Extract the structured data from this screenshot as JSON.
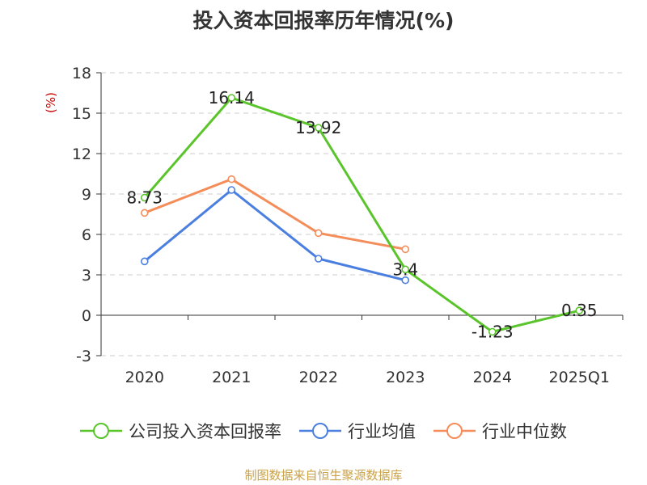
{
  "chart_data": {
    "type": "line",
    "title": "投入资本回报率历年情况(%)",
    "ylabel": "(%)",
    "categories": [
      "2020",
      "2021",
      "2022",
      "2023",
      "2024",
      "2025Q1"
    ],
    "ylim": [
      -3,
      18
    ],
    "yticks": [
      -3,
      0,
      3,
      6,
      9,
      12,
      15,
      18
    ],
    "grid": true,
    "legend_position": "bottom",
    "series": [
      {
        "name": "公司投入资本回报率",
        "color": "#5ac42b",
        "values": [
          8.73,
          16.14,
          13.92,
          3.4,
          -1.23,
          0.35
        ],
        "labels": [
          "8.73",
          "16.14",
          "13.92",
          "3.4",
          "-1.23",
          "0.35"
        ]
      },
      {
        "name": "行业均值",
        "color": "#4a7fe0",
        "values": [
          4.0,
          9.3,
          4.2,
          2.6,
          null,
          null
        ]
      },
      {
        "name": "行业中位数",
        "color": "#f58d5b",
        "values": [
          7.6,
          10.1,
          6.1,
          4.9,
          null,
          null
        ]
      }
    ]
  },
  "source": "制图数据来自恒生聚源数据库"
}
